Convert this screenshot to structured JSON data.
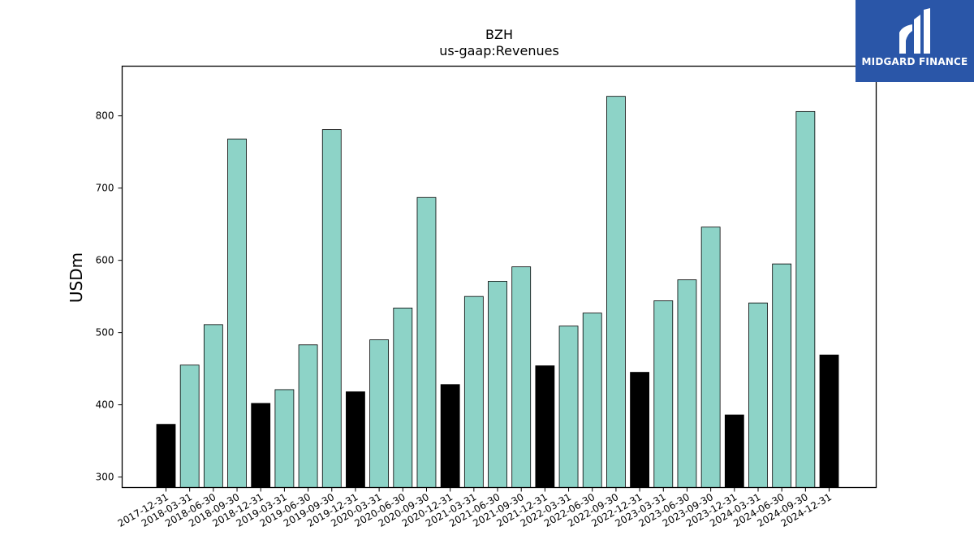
{
  "logo": {
    "brand": "MIDGARD FINANCE",
    "icon": "midgard-logo-icon",
    "background": "#2a56a8"
  },
  "chart_data": {
    "type": "bar",
    "title": "BZH",
    "subtitle": "us-gaap:Revenues",
    "xlabel": "",
    "ylabel": "USDm",
    "ylim": [
      286,
      870
    ],
    "yticks": [
      300,
      400,
      500,
      600,
      700,
      800
    ],
    "grid": false,
    "legend": "none",
    "colors": {
      "quarter": "#8dd3c7",
      "annual": "#000000"
    },
    "categories": [
      "2017-12-31",
      "2018-03-31",
      "2018-06-30",
      "2018-09-30",
      "2018-12-31",
      "2019-03-31",
      "2019-06-30",
      "2019-09-30",
      "2019-12-31",
      "2020-03-31",
      "2020-06-30",
      "2020-09-30",
      "2020-12-31",
      "2021-03-31",
      "2021-06-30",
      "2021-09-30",
      "2021-12-31",
      "2022-03-31",
      "2022-06-30",
      "2022-09-30",
      "2022-12-31",
      "2023-03-31",
      "2023-06-30",
      "2023-09-30",
      "2023-12-31",
      "2024-03-31",
      "2024-06-30",
      "2024-09-30",
      "2024-12-31"
    ],
    "values": [
      373,
      455,
      511,
      768,
      402,
      421,
      483,
      781,
      418,
      490,
      534,
      687,
      428,
      550,
      571,
      591,
      454,
      509,
      527,
      827,
      445,
      544,
      573,
      646,
      386,
      541,
      595,
      806,
      469
    ],
    "highlight": [
      "annual",
      "quarter",
      "quarter",
      "quarter",
      "annual",
      "quarter",
      "quarter",
      "quarter",
      "annual",
      "quarter",
      "quarter",
      "quarter",
      "annual",
      "quarter",
      "quarter",
      "quarter",
      "annual",
      "quarter",
      "quarter",
      "quarter",
      "annual",
      "quarter",
      "quarter",
      "quarter",
      "annual",
      "quarter",
      "quarter",
      "quarter",
      "annual"
    ]
  }
}
